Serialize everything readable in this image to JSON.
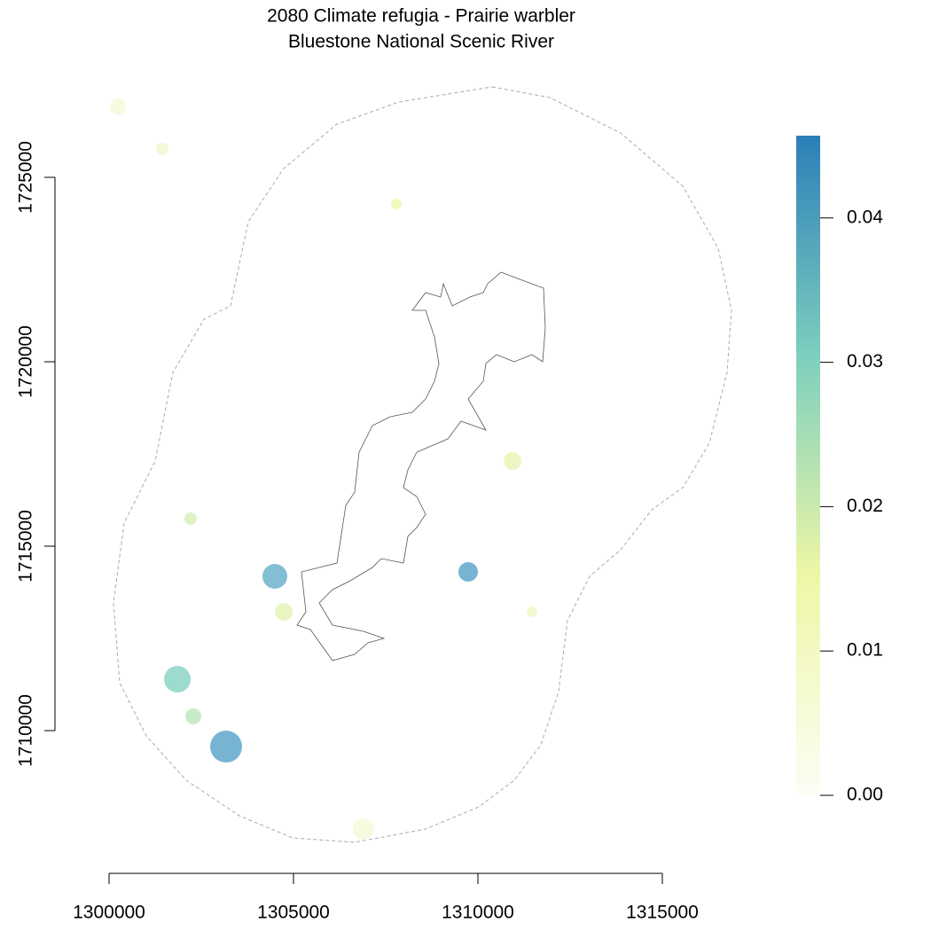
{
  "chart_data": {
    "type": "raster",
    "title": "2080 Climate refugia - Prairie warbler",
    "subtitle": "Bluestone National Scenic River",
    "xlim": [
      1300000,
      1315000
    ],
    "xticks": [
      1300000,
      1305000,
      1310000,
      1315000
    ],
    "ylim": [
      1710000,
      1725000
    ],
    "yticks": [
      1710000,
      1715000,
      1720000,
      1725000
    ],
    "colorbar": {
      "lim": [
        0,
        0.0457
      ],
      "ticks": [
        {
          "value": 0,
          "label": "0.00"
        },
        {
          "value": 0.01,
          "label": "0.01"
        },
        {
          "value": 0.02,
          "label": "0.02"
        },
        {
          "value": 0.03,
          "label": "0.03"
        },
        {
          "value": 0.04,
          "label": "0.04"
        }
      ],
      "colors": [
        "#fcfdf5",
        "#eef7a6",
        "#7dcfbe",
        "#2c7fb8"
      ]
    }
  }
}
